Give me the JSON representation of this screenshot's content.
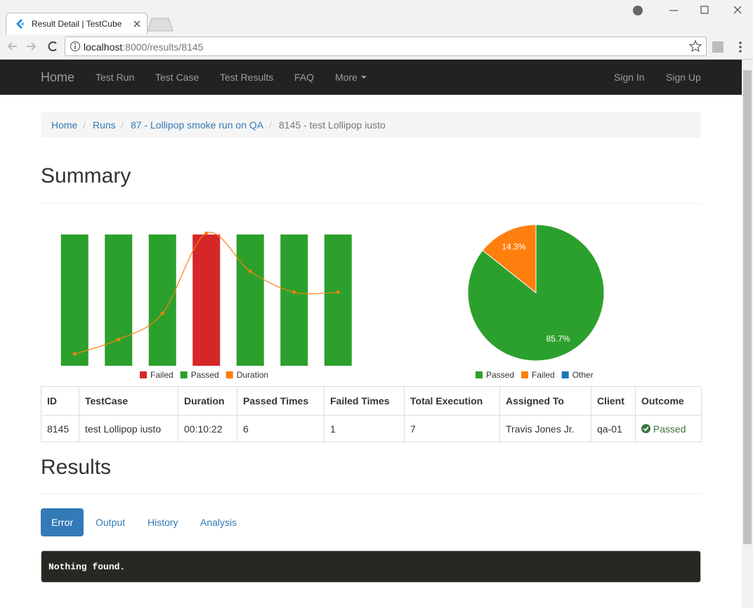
{
  "browser": {
    "tab_title": "Result Detail | TestCube",
    "url_host": "localhost",
    "url_rest": ":8000/results/8145"
  },
  "navbar": {
    "brand": "Home",
    "links": [
      "Test Run",
      "Test Case",
      "Test Results",
      "FAQ",
      "More"
    ],
    "right_links": [
      "Sign In",
      "Sign Up"
    ]
  },
  "breadcrumb": [
    "Home",
    "Runs",
    "87 - Lollipop smoke run on QA",
    "8145 - test Lollipop iusto"
  ],
  "summary": {
    "title": "Summary"
  },
  "chart_data": [
    {
      "type": "bar",
      "categories": [
        null,
        null,
        null,
        null,
        null,
        null,
        null
      ],
      "ylim": [
        0,
        1
      ],
      "series": [
        {
          "name": "Failed",
          "color": "#d62728",
          "values": [
            null,
            null,
            null,
            1,
            null,
            null,
            null
          ]
        },
        {
          "name": "Passed",
          "color": "#2ca02c",
          "values": [
            1,
            1,
            1,
            null,
            1,
            1,
            1
          ]
        },
        {
          "name": "Duration",
          "type": "line",
          "color": "#ff7f0e",
          "values": [
            0.09,
            0.2,
            0.4,
            1.01,
            0.72,
            0.56,
            0.56
          ]
        }
      ]
    },
    {
      "type": "pie",
      "categories": [
        "Passed",
        "Failed",
        "Other"
      ],
      "colors": [
        "#2ca02c",
        "#ff7f0e",
        "#1f77b4"
      ],
      "values": [
        85.7,
        14.3,
        0
      ],
      "value_labels": [
        "85.7%",
        "14.3%",
        null
      ]
    }
  ],
  "table": {
    "header": [
      "ID",
      "TestCase",
      "Duration",
      "Passed Times",
      "Failed Times",
      "Total Execution",
      "Assigned To",
      "Client",
      "Outcome"
    ],
    "rows": [
      [
        "8145",
        "test Lollipop iusto",
        "00:10:22",
        "6",
        "1",
        "7",
        "Travis Jones Jr.",
        "qa-01",
        "Passed"
      ]
    ]
  },
  "results": {
    "title": "Results",
    "tabs": [
      "Error",
      "Output",
      "History",
      "Analysis"
    ],
    "output": "Nothing found."
  }
}
